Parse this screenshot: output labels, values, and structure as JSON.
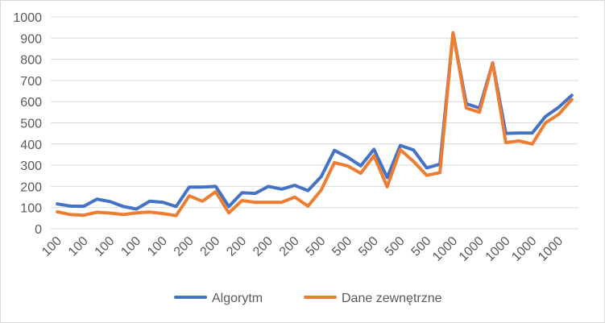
{
  "chart_data": {
    "type": "line",
    "title": "",
    "xlabel": "",
    "ylabel": "",
    "ylim": [
      0,
      1000
    ],
    "yticks": [
      0,
      100,
      200,
      300,
      400,
      500,
      600,
      700,
      800,
      900,
      1000
    ],
    "grid": "horizontal",
    "legend_position": "bottom",
    "categories": [
      "100",
      "100",
      "100",
      "100",
      "100",
      "100",
      "100",
      "100",
      "100",
      "100",
      "200",
      "200",
      "200",
      "200",
      "200",
      "200",
      "200",
      "200",
      "200",
      "200",
      "500",
      "500",
      "500",
      "500",
      "500",
      "500",
      "500",
      "500",
      "500",
      "500",
      "1000",
      "1000",
      "1000",
      "1000",
      "1000",
      "1000",
      "1000",
      "1000",
      "1000",
      "1000"
    ],
    "tick_label_indices": [
      0,
      2,
      4,
      6,
      8,
      10,
      12,
      14,
      16,
      18,
      20,
      22,
      24,
      26,
      28,
      30,
      32,
      34,
      36,
      38
    ],
    "series": [
      {
        "name": "Algorytm",
        "color": "#4472C4",
        "values": [
          117,
          107,
          106,
          140,
          128,
          105,
          93,
          130,
          125,
          105,
          197,
          197,
          200,
          105,
          170,
          167,
          200,
          187,
          205,
          180,
          246,
          370,
          338,
          297,
          375,
          242,
          393,
          372,
          287,
          305,
          925,
          590,
          570,
          783,
          450,
          452,
          452,
          530,
          573,
          630
        ]
      },
      {
        "name": "Dane zewnętrzne",
        "color": "#ED7D31",
        "values": [
          80,
          67,
          64,
          78,
          74,
          67,
          75,
          79,
          72,
          62,
          155,
          130,
          175,
          75,
          133,
          125,
          125,
          125,
          150,
          107,
          183,
          312,
          297,
          262,
          345,
          198,
          373,
          318,
          252,
          265,
          925,
          570,
          550,
          783,
          407,
          415,
          400,
          500,
          540,
          610
        ]
      }
    ]
  }
}
